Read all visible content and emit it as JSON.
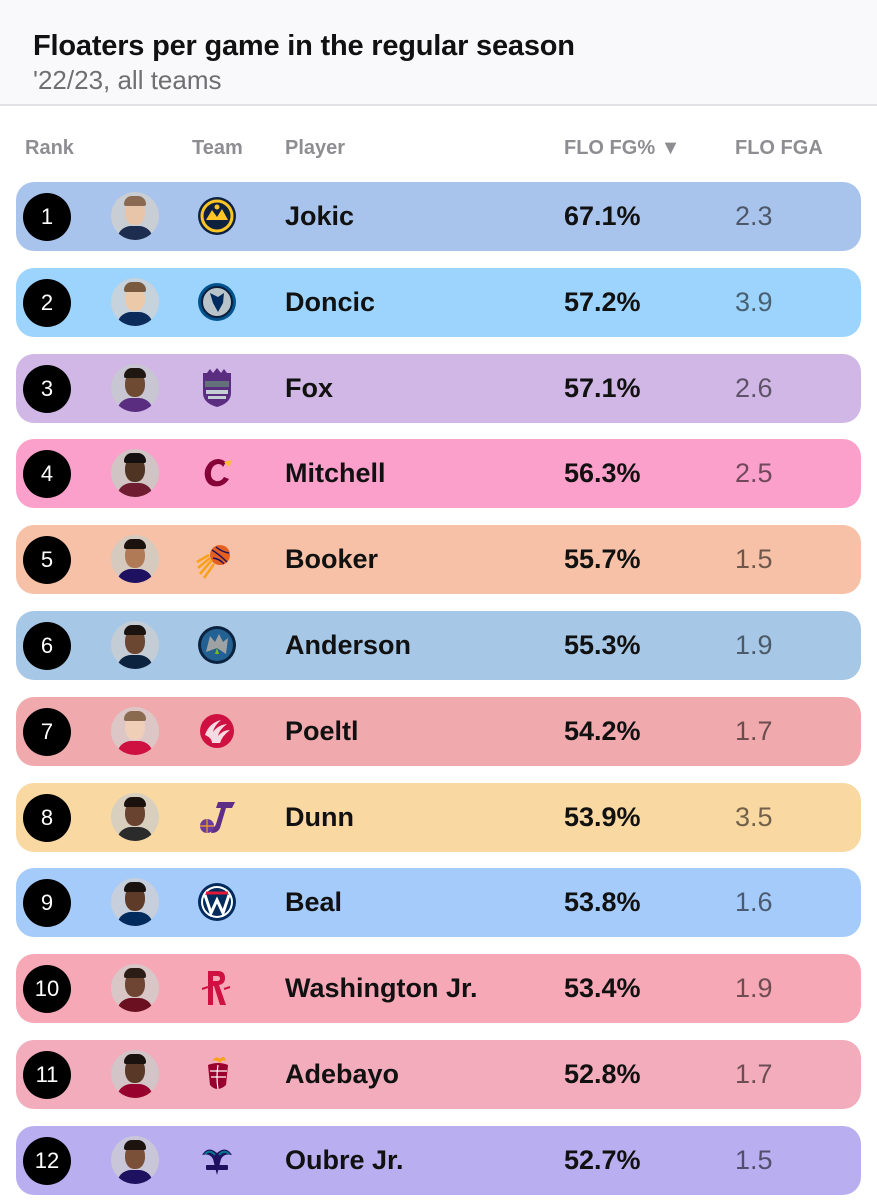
{
  "title": "Floaters per game in the regular season",
  "subtitle": "'22/23, all teams",
  "columns": {
    "rank": "Rank",
    "team": "Team",
    "player": "Player",
    "flo_fg": "FLO FG% ▼",
    "flo_fga": "FLO FGA"
  },
  "rows": [
    {
      "rank": "1",
      "player": "Jokic",
      "fg": "67.1%",
      "fga": "2.3",
      "team_icon": "nuggets-logo-icon",
      "bg": "#a9c4ec"
    },
    {
      "rank": "2",
      "player": "Doncic",
      "fg": "57.2%",
      "fga": "3.9",
      "team_icon": "mavericks-logo-icon",
      "bg": "#9dd4fd"
    },
    {
      "rank": "3",
      "player": "Fox",
      "fg": "57.1%",
      "fga": "2.6",
      "team_icon": "kings-logo-icon",
      "bg": "#d0b7e6"
    },
    {
      "rank": "4",
      "player": "Mitchell",
      "fg": "56.3%",
      "fga": "2.5",
      "team_icon": "cavaliers-logo-icon",
      "bg": "#fba0ca"
    },
    {
      "rank": "5",
      "player": "Booker",
      "fg": "55.7%",
      "fga": "1.5",
      "team_icon": "suns-logo-icon",
      "bg": "#f6c1a7"
    },
    {
      "rank": "6",
      "player": "Anderson",
      "fg": "55.3%",
      "fga": "1.9",
      "team_icon": "timberwolves-logo-icon",
      "bg": "#a7c7e6"
    },
    {
      "rank": "7",
      "player": "Poeltl",
      "fg": "54.2%",
      "fga": "1.7",
      "team_icon": "raptors-logo-icon",
      "bg": "#f0aaae"
    },
    {
      "rank": "8",
      "player": "Dunn",
      "fg": "53.9%",
      "fga": "3.5",
      "team_icon": "jazz-logo-icon",
      "bg": "#fad8a2"
    },
    {
      "rank": "9",
      "player": "Beal",
      "fg": "53.8%",
      "fga": "1.6",
      "team_icon": "wizards-logo-icon",
      "bg": "#a5cbfb"
    },
    {
      "rank": "10",
      "player": "Washington Jr.",
      "fg": "53.4%",
      "fga": "1.9",
      "team_icon": "rockets-logo-icon",
      "bg": "#f6a8b6"
    },
    {
      "rank": "11",
      "player": "Adebayo",
      "fg": "52.8%",
      "fga": "1.7",
      "team_icon": "heat-logo-icon",
      "bg": "#f2acbb"
    },
    {
      "rank": "12",
      "player": "Oubre Jr.",
      "fg": "52.7%",
      "fga": "1.5",
      "team_icon": "hornets-logo-icon",
      "bg": "#b9aeef"
    }
  ]
}
